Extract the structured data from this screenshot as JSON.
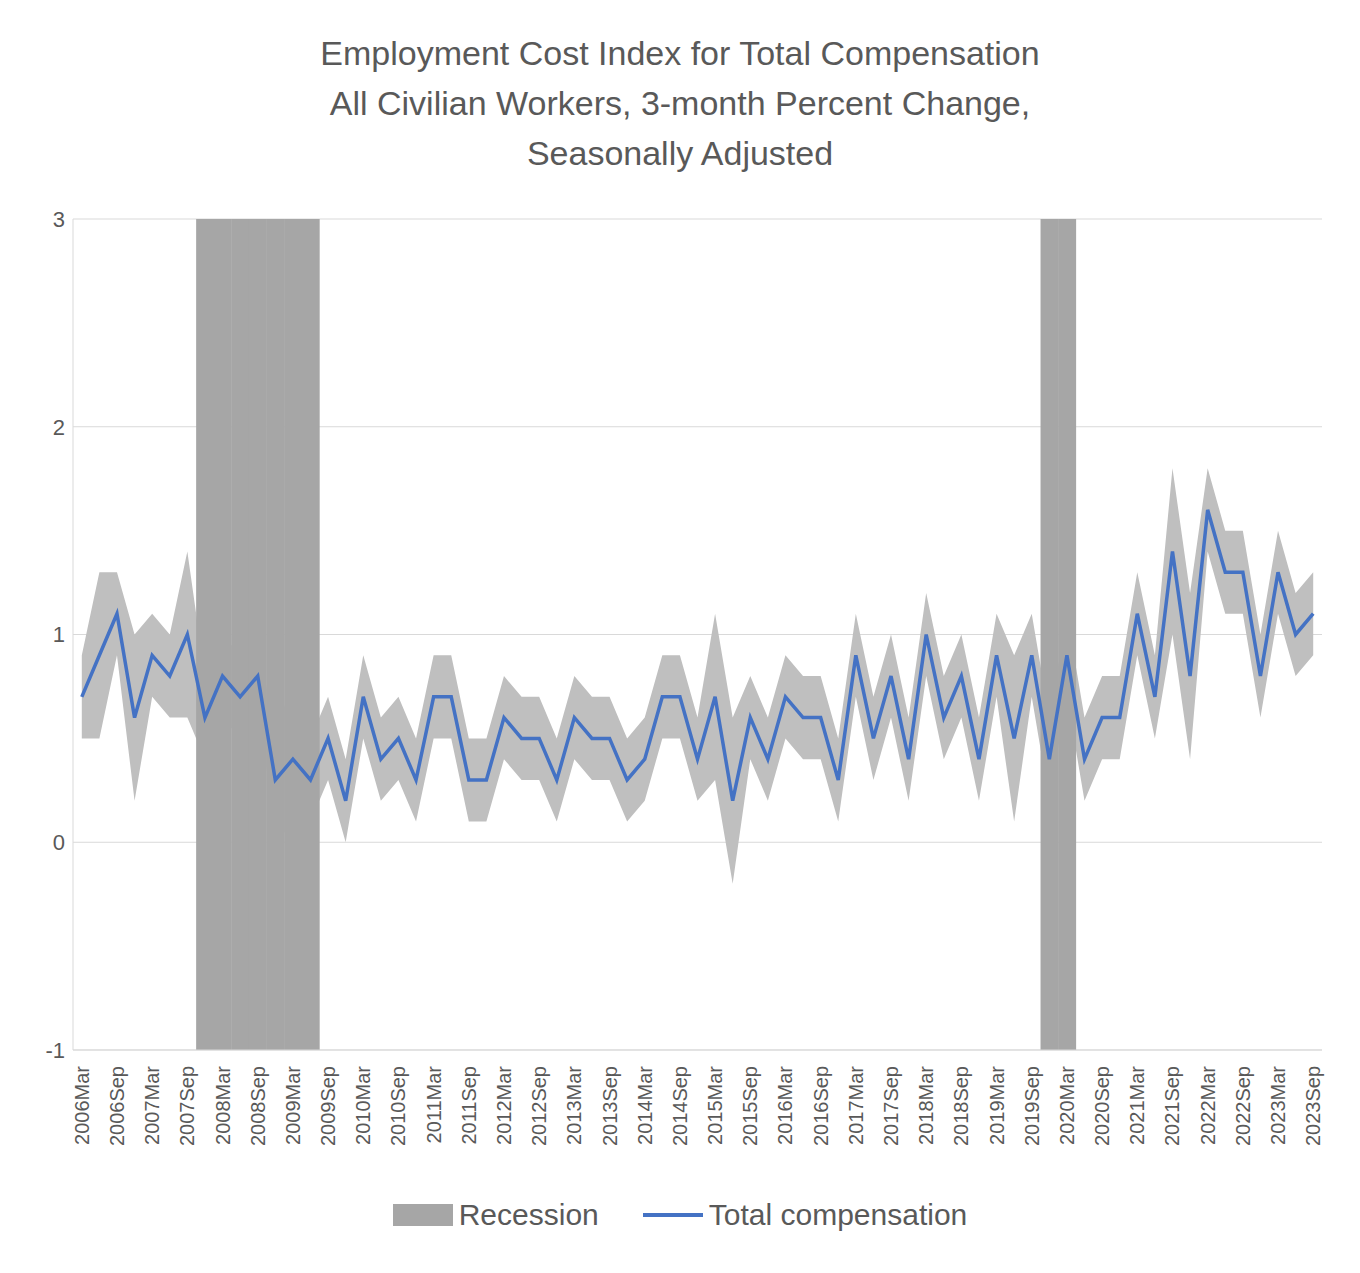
{
  "chart_data": {
    "type": "line",
    "title": "Employment Cost Index for Total Compensation\nAll Civilian Workers, 3-month Percent Change,\nSeasonally Adjusted",
    "categories": [
      "2006Mar",
      null,
      "2006Sep",
      null,
      "2007Mar",
      null,
      "2007Sep",
      null,
      "2008Mar",
      null,
      "2008Sep",
      null,
      "2009Mar",
      null,
      "2009Sep",
      null,
      "2010Mar",
      null,
      "2010Sep",
      null,
      "2011Mar",
      null,
      "2011Sep",
      null,
      "2012Mar",
      null,
      "2012Sep",
      null,
      "2013Mar",
      null,
      "2013Sep",
      null,
      "2014Mar",
      null,
      "2014Sep",
      null,
      "2015Mar",
      null,
      "2015Sep",
      null,
      "2016Mar",
      null,
      "2016Sep",
      null,
      "2017Mar",
      null,
      "2017Sep",
      null,
      "2018Mar",
      null,
      "2018Sep",
      null,
      "2019Mar",
      null,
      "2019Sep",
      null,
      "2020Mar",
      null,
      "2020Sep",
      null,
      "2021Mar",
      null,
      "2021Sep",
      null,
      "2022Mar",
      null,
      "2022Sep",
      null,
      "2023Mar",
      null,
      "2023Sep"
    ],
    "series": [
      {
        "name": "Recession",
        "type": "bar",
        "color": "#a6a6a6",
        "values": [
          null,
          null,
          null,
          null,
          null,
          null,
          null,
          3,
          3,
          3,
          3,
          3,
          3,
          3,
          null,
          null,
          null,
          null,
          null,
          null,
          null,
          null,
          null,
          null,
          null,
          null,
          null,
          null,
          null,
          null,
          null,
          null,
          null,
          null,
          null,
          null,
          null,
          null,
          null,
          null,
          null,
          null,
          null,
          null,
          null,
          null,
          null,
          null,
          null,
          null,
          null,
          null,
          null,
          null,
          null,
          3,
          3,
          null,
          null,
          null,
          null,
          null,
          null,
          null,
          null,
          null,
          null,
          null,
          null,
          null,
          null
        ]
      },
      {
        "name": "Total compensation",
        "type": "line",
        "color": "#4472c4",
        "values": [
          0.7,
          0.9,
          1.1,
          0.6,
          0.9,
          0.8,
          1.0,
          0.6,
          0.8,
          0.7,
          0.8,
          0.3,
          0.4,
          0.3,
          0.5,
          0.2,
          0.7,
          0.4,
          0.5,
          0.3,
          0.7,
          0.7,
          0.3,
          0.3,
          0.6,
          0.5,
          0.5,
          0.3,
          0.6,
          0.5,
          0.5,
          0.3,
          0.4,
          0.7,
          0.7,
          0.4,
          0.7,
          0.2,
          0.6,
          0.4,
          0.7,
          0.6,
          0.6,
          0.3,
          0.9,
          0.5,
          0.8,
          0.4,
          1.0,
          0.6,
          0.8,
          0.4,
          0.9,
          0.5,
          0.9,
          0.4,
          0.9,
          0.4,
          0.6,
          0.6,
          1.1,
          0.7,
          1.4,
          0.8,
          1.6,
          1.3,
          1.3,
          0.8,
          1.3,
          1.0,
          1.1
        ],
        "lower": [
          0.5,
          0.5,
          0.9,
          0.2,
          0.7,
          0.6,
          0.6,
          0.4,
          0.6,
          0.5,
          0.6,
          0.1,
          0.0,
          0.1,
          0.3,
          0.0,
          0.5,
          0.2,
          0.3,
          0.1,
          0.5,
          0.5,
          0.1,
          0.1,
          0.4,
          0.3,
          0.3,
          0.1,
          0.4,
          0.3,
          0.3,
          0.1,
          0.2,
          0.5,
          0.5,
          0.2,
          0.3,
          -0.2,
          0.4,
          0.2,
          0.5,
          0.4,
          0.4,
          0.1,
          0.7,
          0.3,
          0.6,
          0.2,
          0.8,
          0.4,
          0.6,
          0.2,
          0.7,
          0.1,
          0.7,
          0.2,
          0.7,
          0.2,
          0.4,
          0.4,
          0.9,
          0.5,
          1.0,
          0.4,
          1.4,
          1.1,
          1.1,
          0.6,
          1.1,
          0.8,
          0.9
        ],
        "upper": [
          0.9,
          1.3,
          1.3,
          1.0,
          1.1,
          1.0,
          1.4,
          0.8,
          1.0,
          0.9,
          1.0,
          0.5,
          0.8,
          0.5,
          0.7,
          0.4,
          0.9,
          0.6,
          0.7,
          0.5,
          0.9,
          0.9,
          0.5,
          0.5,
          0.8,
          0.7,
          0.7,
          0.5,
          0.8,
          0.7,
          0.7,
          0.5,
          0.6,
          0.9,
          0.9,
          0.6,
          1.1,
          0.6,
          0.8,
          0.6,
          0.9,
          0.8,
          0.8,
          0.5,
          1.1,
          0.7,
          1.0,
          0.6,
          1.2,
          0.8,
          1.0,
          0.6,
          1.1,
          0.9,
          1.1,
          0.6,
          1.1,
          0.6,
          0.8,
          0.8,
          1.3,
          0.9,
          1.8,
          1.2,
          1.8,
          1.5,
          1.5,
          1.0,
          1.5,
          1.2,
          1.3
        ]
      }
    ],
    "ylim": [
      -1,
      3
    ],
    "yticks": [
      -1,
      0,
      1,
      2,
      3
    ],
    "grid": true,
    "legend": "bottom"
  }
}
